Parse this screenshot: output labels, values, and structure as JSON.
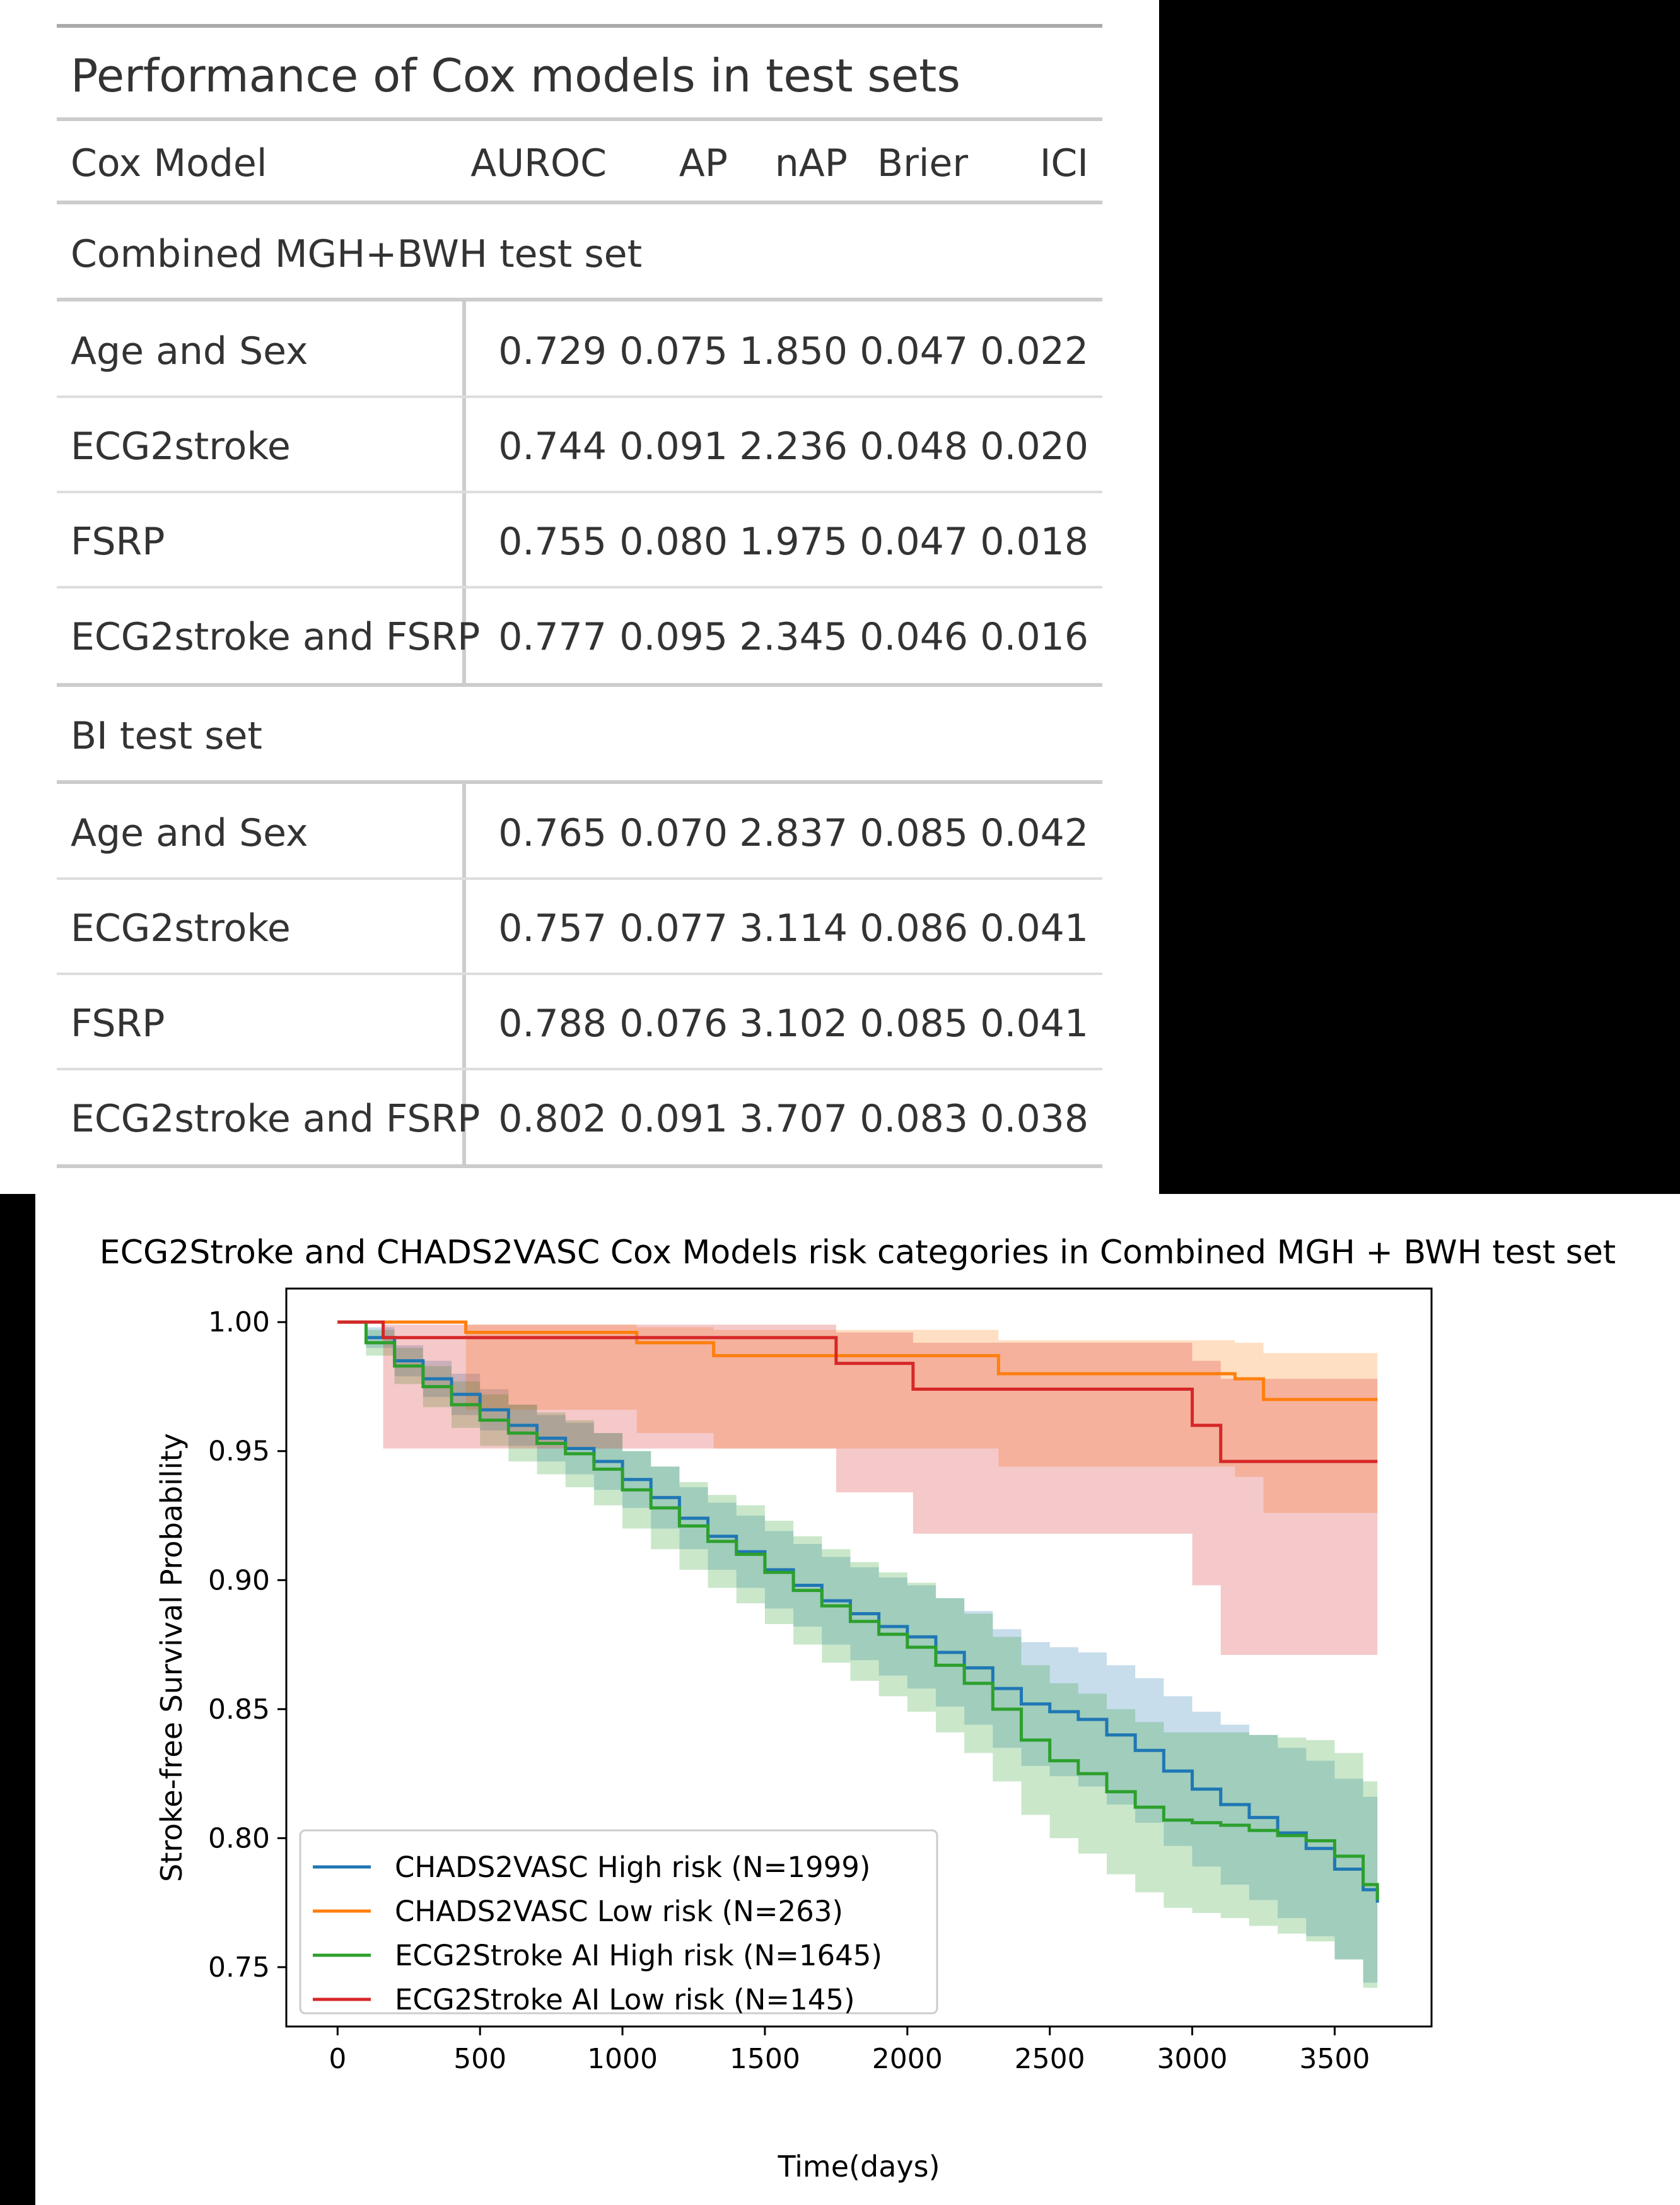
{
  "table": {
    "title": "Performance of Cox models in test sets",
    "headers": [
      "Cox Model",
      "AUROC",
      "AP",
      "nAP",
      "Brier",
      "ICI"
    ],
    "groups": [
      {
        "label": "Combined MGH+BWH test set",
        "rows": [
          [
            "Age and Sex",
            "0.729",
            "0.075",
            "1.850",
            "0.047",
            "0.022"
          ],
          [
            "ECG2stroke",
            "0.744",
            "0.091",
            "2.236",
            "0.048",
            "0.020"
          ],
          [
            "FSRP",
            "0.755",
            "0.080",
            "1.975",
            "0.047",
            "0.018"
          ],
          [
            "ECG2stroke and FSRP",
            "0.777",
            "0.095",
            "2.345",
            "0.046",
            "0.016"
          ]
        ]
      },
      {
        "label": "BI test set",
        "rows": [
          [
            "Age and Sex",
            "0.765",
            "0.070",
            "2.837",
            "0.085",
            "0.042"
          ],
          [
            "ECG2stroke",
            "0.757",
            "0.077",
            "3.114",
            "0.086",
            "0.041"
          ],
          [
            "FSRP",
            "0.788",
            "0.076",
            "3.102",
            "0.085",
            "0.041"
          ],
          [
            "ECG2stroke and FSRP",
            "0.802",
            "0.091",
            "3.707",
            "0.083",
            "0.038"
          ]
        ]
      }
    ]
  },
  "chart_data": {
    "type": "line",
    "title": "ECG2Stroke and CHADS2VASC Cox Models risk categories in Combined MGH + BWH test set",
    "xlabel": "Time(days)",
    "ylabel": "Stroke-free Survival Probability",
    "xlim": [
      -180,
      3840
    ],
    "ylim": [
      0.727,
      1.013
    ],
    "xticks": [
      0,
      500,
      1000,
      1500,
      2000,
      2500,
      3000,
      3500
    ],
    "yticks": [
      0.75,
      0.8,
      0.85,
      0.9,
      0.95,
      1.0
    ],
    "ytick_labels": [
      "0.75",
      "0.80",
      "0.85",
      "0.90",
      "0.95",
      "1.00"
    ],
    "legend_position": "lower-left",
    "series": [
      {
        "name": "CHADS2VASC High risk (N=1999)",
        "color": "#1f77b4",
        "x": [
          0,
          100,
          200,
          300,
          400,
          500,
          600,
          700,
          800,
          900,
          1000,
          1100,
          1200,
          1300,
          1400,
          1500,
          1600,
          1700,
          1800,
          1900,
          2000,
          2100,
          2200,
          2300,
          2400,
          2500,
          2600,
          2700,
          2800,
          2900,
          3000,
          3100,
          3200,
          3300,
          3400,
          3500,
          3600,
          3650
        ],
        "y": [
          1.0,
          0.994,
          0.985,
          0.978,
          0.972,
          0.966,
          0.96,
          0.955,
          0.951,
          0.946,
          0.939,
          0.932,
          0.924,
          0.917,
          0.911,
          0.904,
          0.898,
          0.892,
          0.887,
          0.882,
          0.878,
          0.872,
          0.866,
          0.858,
          0.852,
          0.849,
          0.846,
          0.84,
          0.834,
          0.826,
          0.819,
          0.813,
          0.808,
          0.802,
          0.796,
          0.788,
          0.78,
          0.775
        ],
        "ci_lower": [
          1.0,
          0.99,
          0.979,
          0.971,
          0.964,
          0.958,
          0.952,
          0.946,
          0.941,
          0.935,
          0.928,
          0.92,
          0.912,
          0.904,
          0.897,
          0.889,
          0.882,
          0.875,
          0.869,
          0.863,
          0.858,
          0.851,
          0.844,
          0.835,
          0.828,
          0.824,
          0.82,
          0.813,
          0.806,
          0.797,
          0.789,
          0.782,
          0.776,
          0.769,
          0.762,
          0.753,
          0.744,
          0.739
        ],
        "ci_upper": [
          1.0,
          0.998,
          0.991,
          0.985,
          0.98,
          0.974,
          0.968,
          0.964,
          0.961,
          0.957,
          0.95,
          0.944,
          0.936,
          0.93,
          0.925,
          0.919,
          0.914,
          0.909,
          0.905,
          0.901,
          0.898,
          0.893,
          0.888,
          0.881,
          0.876,
          0.874,
          0.872,
          0.867,
          0.862,
          0.855,
          0.849,
          0.844,
          0.84,
          0.835,
          0.83,
          0.823,
          0.816,
          0.811
        ]
      },
      {
        "name": "CHADS2VASC Low risk (N=263)",
        "color": "#ff7f0e",
        "x": [
          0,
          450,
          1050,
          1320,
          2320,
          3150,
          3250,
          3650
        ],
        "y": [
          1.0,
          0.996,
          0.992,
          0.987,
          0.98,
          0.978,
          0.97,
          0.97
        ],
        "ci_lower": [
          1.0,
          0.966,
          0.957,
          0.951,
          0.944,
          0.94,
          0.926,
          0.926
        ],
        "ci_upper": [
          1.0,
          0.999,
          0.998,
          0.997,
          0.993,
          0.992,
          0.988,
          0.988
        ]
      },
      {
        "name": "ECG2Stroke AI High risk (N=1645)",
        "color": "#2ca02c",
        "x": [
          0,
          100,
          200,
          300,
          400,
          500,
          600,
          700,
          800,
          900,
          1000,
          1100,
          1200,
          1300,
          1400,
          1500,
          1600,
          1700,
          1800,
          1900,
          2000,
          2100,
          2200,
          2300,
          2400,
          2500,
          2600,
          2700,
          2800,
          2900,
          3000,
          3100,
          3200,
          3300,
          3400,
          3500,
          3600,
          3650
        ],
        "y": [
          1.0,
          0.992,
          0.983,
          0.975,
          0.968,
          0.962,
          0.957,
          0.953,
          0.949,
          0.943,
          0.935,
          0.928,
          0.921,
          0.915,
          0.91,
          0.903,
          0.896,
          0.89,
          0.884,
          0.879,
          0.874,
          0.867,
          0.86,
          0.85,
          0.838,
          0.83,
          0.825,
          0.818,
          0.812,
          0.807,
          0.806,
          0.805,
          0.803,
          0.801,
          0.799,
          0.793,
          0.782,
          0.776
        ],
        "ci_lower": [
          1.0,
          0.987,
          0.976,
          0.967,
          0.959,
          0.952,
          0.946,
          0.941,
          0.936,
          0.929,
          0.92,
          0.912,
          0.904,
          0.897,
          0.891,
          0.883,
          0.875,
          0.868,
          0.861,
          0.855,
          0.849,
          0.841,
          0.833,
          0.822,
          0.809,
          0.8,
          0.794,
          0.786,
          0.779,
          0.773,
          0.771,
          0.769,
          0.766,
          0.763,
          0.76,
          0.753,
          0.742,
          0.736
        ],
        "ci_upper": [
          1.0,
          0.997,
          0.99,
          0.983,
          0.977,
          0.972,
          0.968,
          0.965,
          0.962,
          0.957,
          0.95,
          0.944,
          0.938,
          0.933,
          0.929,
          0.923,
          0.917,
          0.912,
          0.907,
          0.903,
          0.899,
          0.893,
          0.887,
          0.878,
          0.867,
          0.86,
          0.856,
          0.85,
          0.845,
          0.841,
          0.841,
          0.841,
          0.84,
          0.839,
          0.838,
          0.833,
          0.822,
          0.816
        ]
      },
      {
        "name": "ECG2Stroke AI Low risk (N=145)",
        "color": "#d62728",
        "x": [
          0,
          160,
          1750,
          2020,
          3000,
          3100,
          3650
        ],
        "y": [
          1.0,
          0.994,
          0.984,
          0.974,
          0.96,
          0.946,
          0.946
        ],
        "ci_lower": [
          1.0,
          0.951,
          0.934,
          0.918,
          0.898,
          0.871,
          0.871
        ],
        "ci_upper": [
          1.0,
          0.999,
          0.996,
          0.992,
          0.985,
          0.978,
          0.978
        ]
      }
    ]
  }
}
